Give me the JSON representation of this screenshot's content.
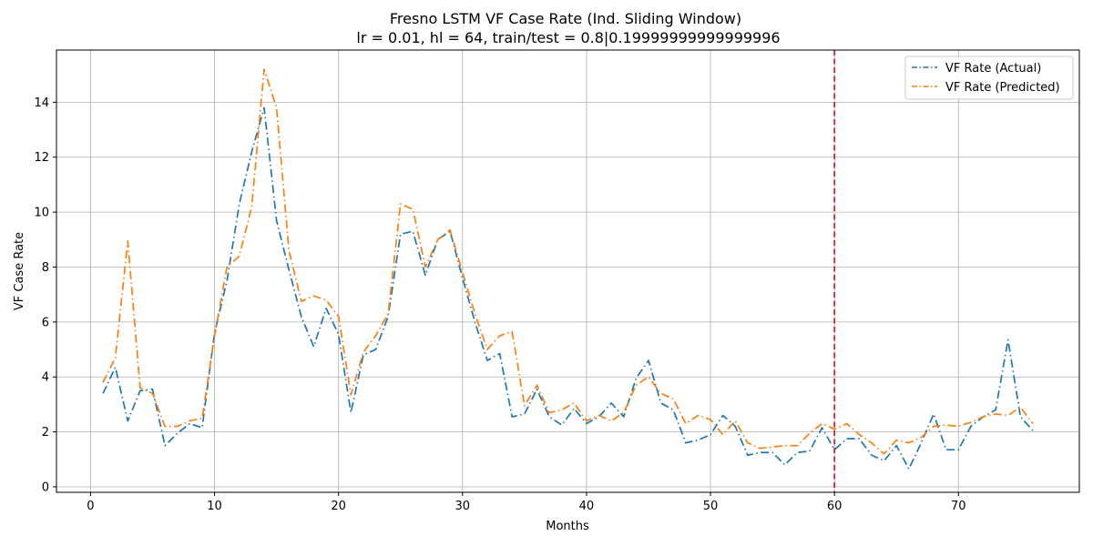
{
  "chart_data": {
    "type": "line",
    "title": "Fresno LSTM VF Case Rate (Ind. Sliding Window)",
    "subtitle": "lr = 0.01, hl = 64, train/test = 0.8|0.19999999999999996",
    "xlabel": "Months",
    "ylabel": "VF Case Rate",
    "xlim": [
      -2.75,
      79.75
    ],
    "ylim": [
      -0.2,
      15.9
    ],
    "xticks": [
      0,
      10,
      20,
      30,
      40,
      50,
      60,
      70
    ],
    "yticks": [
      0,
      2,
      4,
      6,
      8,
      10,
      12,
      14
    ],
    "grid": true,
    "legend_position": "top-right",
    "split_line": {
      "x": 60,
      "color": "#d62728",
      "style": "dashed"
    },
    "x": [
      1,
      2,
      3,
      4,
      5,
      6,
      7,
      8,
      9,
      10,
      11,
      12,
      13,
      14,
      15,
      16,
      17,
      18,
      19,
      20,
      21,
      22,
      23,
      24,
      25,
      26,
      27,
      28,
      29,
      30,
      31,
      32,
      33,
      34,
      35,
      36,
      37,
      38,
      39,
      40,
      41,
      42,
      43,
      44,
      45,
      46,
      47,
      48,
      49,
      50,
      51,
      52,
      53,
      54,
      55,
      56,
      57,
      58,
      59,
      60,
      61,
      62,
      63,
      64,
      65,
      66,
      67,
      68,
      69,
      70,
      71,
      72,
      73,
      74,
      75,
      76
    ],
    "series": [
      {
        "name": "VF Rate (Actual)",
        "color": "#1f77b4",
        "values": [
          3.4,
          4.35,
          2.4,
          3.5,
          3.55,
          1.5,
          1.95,
          2.3,
          2.15,
          5.6,
          7.5,
          10.3,
          12.2,
          13.8,
          9.7,
          7.9,
          6.2,
          5.1,
          6.5,
          5.55,
          2.7,
          4.8,
          5.0,
          6.2,
          9.2,
          9.3,
          7.7,
          9.0,
          9.3,
          7.6,
          6.0,
          4.6,
          4.85,
          2.55,
          2.65,
          3.55,
          2.55,
          2.25,
          2.85,
          2.3,
          2.55,
          3.05,
          2.55,
          3.95,
          4.6,
          3.05,
          2.8,
          1.6,
          1.7,
          1.9,
          2.6,
          2.2,
          1.15,
          1.25,
          1.25,
          0.8,
          1.25,
          1.3,
          2.15,
          1.35,
          1.75,
          1.75,
          1.15,
          0.95,
          1.5,
          0.65,
          1.6,
          2.65,
          1.35,
          1.35,
          2.2,
          2.55,
          2.8,
          5.35,
          2.55,
          2.05
        ]
      },
      {
        "name": "VF Rate (Predicted)",
        "color": "#ff7f0e",
        "values": [
          3.8,
          4.7,
          8.95,
          3.6,
          3.4,
          2.2,
          2.2,
          2.4,
          2.5,
          5.5,
          8.0,
          8.4,
          10.2,
          15.2,
          13.8,
          8.6,
          6.75,
          6.95,
          6.8,
          6.2,
          3.35,
          4.9,
          5.5,
          6.3,
          10.3,
          10.1,
          8.0,
          9.0,
          9.35,
          7.8,
          6.3,
          5.0,
          5.5,
          5.65,
          2.95,
          3.7,
          2.7,
          2.8,
          3.05,
          2.4,
          2.6,
          2.4,
          2.7,
          3.7,
          4.0,
          3.4,
          3.2,
          2.3,
          2.6,
          2.45,
          1.9,
          2.4,
          1.6,
          1.4,
          1.45,
          1.5,
          1.5,
          1.95,
          2.3,
          2.1,
          2.3,
          1.9,
          1.6,
          1.2,
          1.7,
          1.6,
          1.8,
          2.2,
          2.25,
          2.2,
          2.35,
          2.55,
          2.65,
          2.6,
          2.9,
          2.3
        ]
      }
    ]
  }
}
